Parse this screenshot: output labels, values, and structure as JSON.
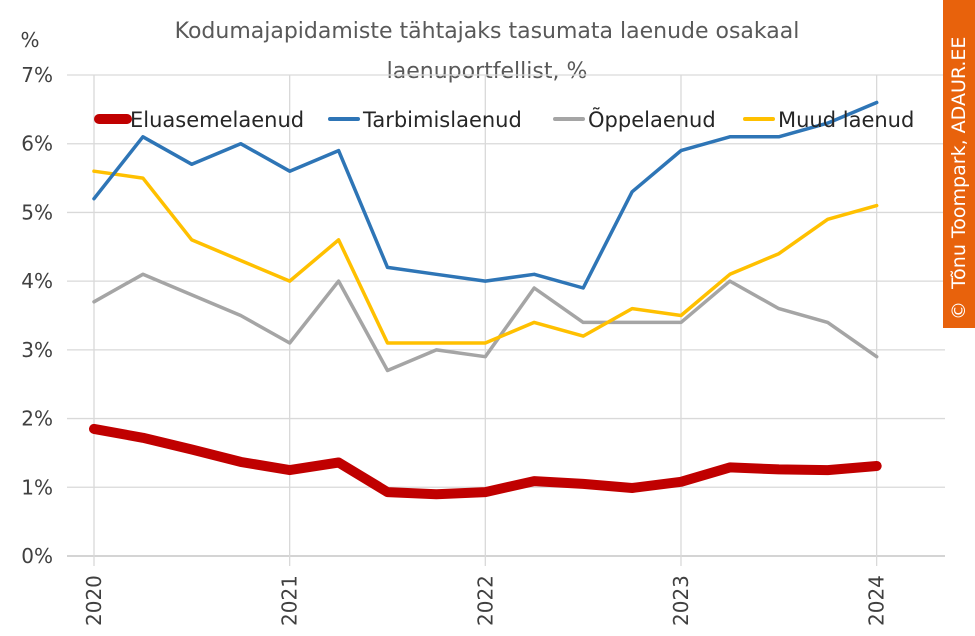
{
  "chart_data": {
    "type": "line",
    "title_line1": "Kodumajapidamiste tähtajaks tasumata laenude osakaal",
    "title_line2": "laenuportfellist, %",
    "yunit": "%",
    "ylim": [
      0,
      7
    ],
    "yticks": [
      "0%",
      "1%",
      "2%",
      "3%",
      "4%",
      "5%",
      "6%",
      "7%"
    ],
    "xlim": [
      2020,
      2024.15
    ],
    "xticks": [
      "2020",
      "2021",
      "2022",
      "2023",
      "2024"
    ],
    "grid": "vertical at year ticks, horizontal at y ticks",
    "legend_position": "top",
    "x": [
      2020.0,
      2020.25,
      2020.5,
      2020.75,
      2021.0,
      2021.25,
      2021.5,
      2021.75,
      2022.0,
      2022.25,
      2022.5,
      2022.75,
      2023.0,
      2023.25,
      2023.5,
      2023.75,
      2024.0
    ],
    "series": [
      {
        "name": "Eluasemelaenud",
        "color": "#C00000",
        "width": 10,
        "values": [
          1.85,
          1.72,
          1.55,
          1.37,
          1.25,
          1.36,
          0.93,
          0.9,
          0.93,
          1.09,
          1.05,
          0.99,
          1.08,
          1.29,
          1.26,
          1.25,
          1.31
        ]
      },
      {
        "name": "Tarbimislaenud",
        "color": "#2E75B6",
        "width": 3.5,
        "values": [
          5.2,
          6.1,
          5.7,
          6.0,
          5.6,
          5.9,
          4.2,
          4.1,
          4.0,
          4.1,
          3.9,
          5.3,
          5.9,
          6.1,
          6.1,
          6.3,
          6.6
        ]
      },
      {
        "name": "Õppelaenud",
        "color": "#A5A5A5",
        "width": 3.5,
        "values": [
          3.7,
          4.1,
          3.8,
          3.5,
          3.1,
          4.0,
          2.7,
          3.0,
          2.9,
          3.9,
          3.4,
          3.4,
          3.4,
          4.0,
          3.6,
          3.4,
          2.9
        ]
      },
      {
        "name": "Muud laenud",
        "color": "#FFC000",
        "width": 3.5,
        "values": [
          5.6,
          5.5,
          4.6,
          4.3,
          4.0,
          4.6,
          3.1,
          3.1,
          3.1,
          3.4,
          3.2,
          3.6,
          3.5,
          4.1,
          4.4,
          4.9,
          5.1
        ]
      }
    ]
  },
  "credit": {
    "symbol": "©",
    "text": "Tõnu Toompark, ADAUR.EE",
    "color": "#E8620C"
  }
}
